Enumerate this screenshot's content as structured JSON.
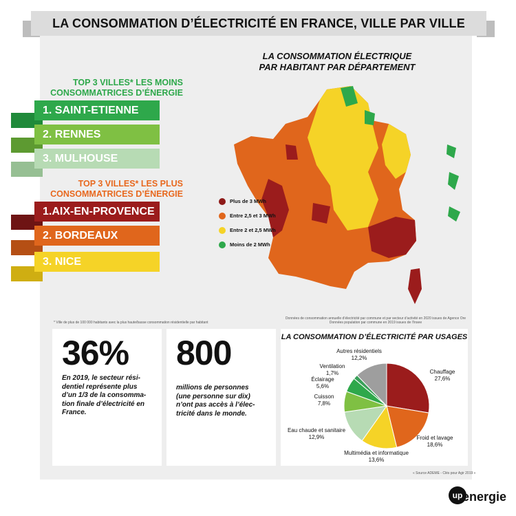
{
  "title": "LA CONSOMMATION D’ÉLECTRICITÉ EN FRANCE, VILLE PAR VILLE",
  "map_title_line1": "LA CONSOMMATION ÉLECTRIQUE",
  "map_title_line2": "PAR HABITANT PAR DÉPARTEMENT",
  "least": {
    "title_line1": "TOP 3 VILLES* LES MOINS",
    "title_line2": "CONSOMMATRICES D’ÉNERGIE",
    "items": [
      {
        "label": "1. SAINT-ETIENNE",
        "color": "#2ea84b"
      },
      {
        "label": "2. RENNES",
        "color": "#7fc043"
      },
      {
        "label": "3. MULHOUSE",
        "color": "#b7dbb4"
      }
    ]
  },
  "most": {
    "title_line1": "TOP 3 VILLES* LES PLUS",
    "title_line2": "CONSOMMATRICES D’ÉNERGIE",
    "items": [
      {
        "label": "1.AIX-EN-PROVENCE",
        "color": "#9b1c1c"
      },
      {
        "label": "2. BORDEAUX",
        "color": "#e0661c"
      },
      {
        "label": "3. NICE",
        "color": "#f5d327"
      }
    ]
  },
  "legend": [
    {
      "label": "Plus de 3 MWh",
      "color": "#8e1a18"
    },
    {
      "label": "Entre 2,5 et 3 MWh",
      "color": "#e0661c"
    },
    {
      "label": "Entre 2 et 2,5 MWh",
      "color": "#f5d327"
    },
    {
      "label": "Moins de 2 MWh",
      "color": "#2ea84b"
    }
  ],
  "footnote_left": "* Ville de plus de 100 000 habitants avec la plus haute/basse consommation résidentielle par habitant",
  "footnote_right_line1": "Données de consommation annuelle d’électricité par commune et par secteur d’activité en 2020 issues de Agence Ore",
  "footnote_right_line2": "Données population par commune en 2019 issues de l’Insee",
  "card1": {
    "number": "36%",
    "text_lines": [
      "En 2019, le secteur rési-",
      "dentiel représente plus",
      "d’un 1/3 de la consomma-",
      "tion finale d’électricité en",
      "France."
    ]
  },
  "card2": {
    "number": "800",
    "text_lines": [
      "millions de personnes",
      "(une personne sur dix)",
      "n’ont pas accès à l’élec-",
      "tricité dans le monde."
    ]
  },
  "source": "« Source ADEME - Clés pour Agir 2019 »",
  "logo": {
    "circle": "up",
    "text": "energie"
  },
  "chart_data": {
    "type": "pie",
    "title": "LA CONSOMMATION D’ÉLECTRICITÉ PAR USAGES",
    "slices": [
      {
        "name": "Chauffage",
        "value": 27.6,
        "label": "27,6%",
        "color": "#9b1c1c"
      },
      {
        "name": "Froid et lavage",
        "value": 18.6,
        "label": "18,6%",
        "color": "#e0661c"
      },
      {
        "name": "Multimédia et informatique",
        "value": 13.6,
        "label": "13,6%",
        "color": "#f5d327"
      },
      {
        "name": "Eau chaude et sanitaire",
        "value": 12.9,
        "label": "12,9%",
        "color": "#b7dbb4"
      },
      {
        "name": "Cuisson",
        "value": 7.8,
        "label": "7,8%",
        "color": "#7fc043"
      },
      {
        "name": "Éclairage",
        "value": 5.6,
        "label": "5,6%",
        "color": "#2ea84b"
      },
      {
        "name": "Ventilation",
        "value": 1.7,
        "label": "1,7%",
        "color": "#3aa05a"
      },
      {
        "name": "Autres résidentiels",
        "value": 12.2,
        "label": "12,2%",
        "color": "#9e9e9e"
      }
    ]
  }
}
